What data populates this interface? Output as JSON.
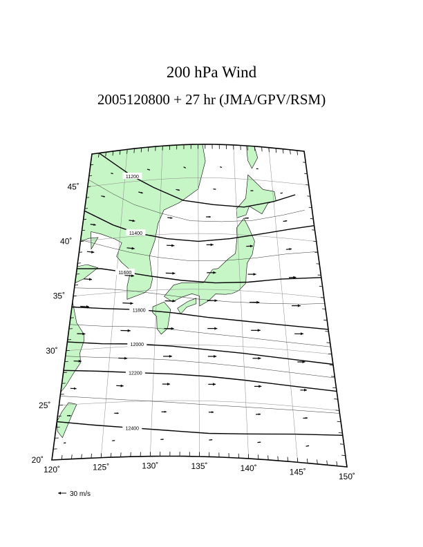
{
  "title": "200 hPa Wind",
  "subtitle": "2005120800 + 27 hr (JMA/GPV/RSM)",
  "map": {
    "lon_min": 120,
    "lon_max": 150,
    "lat_min": 20,
    "lat_max": 48,
    "lon_labels": [
      {
        "lon": 120,
        "text": "120˚"
      },
      {
        "lon": 125,
        "text": "125˚"
      },
      {
        "lon": 130,
        "text": "130˚"
      },
      {
        "lon": 135,
        "text": "135˚"
      },
      {
        "lon": 140,
        "text": "140˚"
      },
      {
        "lon": 145,
        "text": "145˚"
      },
      {
        "lon": 150,
        "text": "150˚"
      }
    ],
    "lat_labels": [
      {
        "lat": 20,
        "text": "20˚"
      },
      {
        "lat": 25,
        "text": "25˚"
      },
      {
        "lat": 30,
        "text": "30˚"
      },
      {
        "lat": 35,
        "text": "35˚"
      },
      {
        "lat": 40,
        "text": "40˚"
      },
      {
        "lat": 45,
        "text": "45˚"
      }
    ],
    "land_color": "#c6f5c6",
    "contours": [
      {
        "value": "11200",
        "label": "11200",
        "points": [
          [
            120,
            48.5
          ],
          [
            123,
            47
          ],
          [
            126,
            45.5
          ],
          [
            129,
            44.3
          ],
          [
            133,
            43
          ],
          [
            137,
            42.6
          ],
          [
            141,
            42.5
          ],
          [
            145,
            43.2
          ],
          [
            148,
            44
          ]
        ]
      },
      {
        "value": "11400",
        "label": "11400",
        "points": [
          [
            120,
            42.8
          ],
          [
            124,
            41.2
          ],
          [
            127,
            40.3
          ],
          [
            131,
            39.6
          ],
          [
            135,
            39.3
          ],
          [
            139,
            39.6
          ],
          [
            143,
            40.2
          ],
          [
            147,
            40.9
          ],
          [
            150,
            41.4
          ]
        ]
      },
      {
        "value": "11600",
        "label": "11600",
        "points": [
          [
            120,
            37.5
          ],
          [
            123,
            37.3
          ],
          [
            126,
            36.8
          ],
          [
            129,
            36.3
          ],
          [
            133,
            35.8
          ],
          [
            137,
            35.6
          ],
          [
            141,
            35.8
          ],
          [
            145,
            36.3
          ],
          [
            150,
            36.8
          ]
        ]
      },
      {
        "value": "11800",
        "label": "11800",
        "points": [
          [
            120,
            34
          ],
          [
            124,
            33.6
          ],
          [
            128,
            33.3
          ],
          [
            132,
            32.9
          ],
          [
            136,
            32.5
          ],
          [
            140,
            32.3
          ],
          [
            144,
            32.2
          ],
          [
            150,
            32.2
          ]
        ]
      },
      {
        "value": "12000",
        "label": "12000",
        "points": [
          [
            120,
            30.8
          ],
          [
            124,
            30.4
          ],
          [
            128,
            30.2
          ],
          [
            132,
            29.9
          ],
          [
            136,
            29.6
          ],
          [
            140,
            29.4
          ],
          [
            145,
            29.2
          ],
          [
            150,
            29.1
          ]
        ]
      },
      {
        "value": "12200",
        "label": "12200",
        "points": [
          [
            120,
            28.2
          ],
          [
            124,
            27.9
          ],
          [
            128,
            27.6
          ],
          [
            132,
            27.4
          ],
          [
            136,
            27.2
          ],
          [
            140,
            27
          ],
          [
            145,
            26.8
          ],
          [
            150,
            26.7
          ]
        ]
      },
      {
        "value": "12400",
        "label": "12400",
        "points": [
          [
            120,
            23.5
          ],
          [
            124,
            23
          ],
          [
            128,
            22.6
          ],
          [
            132,
            22.3
          ],
          [
            136,
            22.1
          ],
          [
            140,
            22.2
          ],
          [
            145,
            22.5
          ],
          [
            150,
            22.8
          ]
        ]
      }
    ],
    "wind_vectors": [
      {
        "lon": 123,
        "lat": 46,
        "u": 8,
        "v": -2
      },
      {
        "lon": 128,
        "lat": 46,
        "u": 10,
        "v": -3
      },
      {
        "lon": 133,
        "lat": 46,
        "u": 8,
        "v": -4
      },
      {
        "lon": 138,
        "lat": 46,
        "u": 7,
        "v": -2
      },
      {
        "lon": 143,
        "lat": 46,
        "u": 7,
        "v": 0
      },
      {
        "lon": 122,
        "lat": 44,
        "u": 14,
        "v": -3
      },
      {
        "lon": 127,
        "lat": 44,
        "u": 16,
        "v": -4
      },
      {
        "lon": 132,
        "lat": 44,
        "u": 14,
        "v": -3
      },
      {
        "lon": 137,
        "lat": 44,
        "u": 10,
        "v": -1
      },
      {
        "lon": 142,
        "lat": 44,
        "u": 10,
        "v": 0
      },
      {
        "lon": 146,
        "lat": 44,
        "u": 8,
        "v": 1
      },
      {
        "lon": 121,
        "lat": 41.5,
        "u": 20,
        "v": -3
      },
      {
        "lon": 126,
        "lat": 41.5,
        "u": 22,
        "v": -3
      },
      {
        "lon": 131,
        "lat": 41.5,
        "u": 18,
        "v": -2
      },
      {
        "lon": 136,
        "lat": 41.5,
        "u": 17,
        "v": 0
      },
      {
        "lon": 141,
        "lat": 41.5,
        "u": 15,
        "v": 1
      },
      {
        "lon": 146,
        "lat": 41.5,
        "u": 14,
        "v": 2
      },
      {
        "lon": 121,
        "lat": 39,
        "u": 26,
        "v": -3
      },
      {
        "lon": 126,
        "lat": 39,
        "u": 28,
        "v": -3
      },
      {
        "lon": 131,
        "lat": 39,
        "u": 28,
        "v": -1
      },
      {
        "lon": 136,
        "lat": 39,
        "u": 25,
        "v": 0
      },
      {
        "lon": 141,
        "lat": 39,
        "u": 24,
        "v": 1
      },
      {
        "lon": 146,
        "lat": 39,
        "u": 20,
        "v": 2
      },
      {
        "lon": 121,
        "lat": 36.5,
        "u": 30,
        "v": -2
      },
      {
        "lon": 126,
        "lat": 36.5,
        "u": 34,
        "v": -2
      },
      {
        "lon": 131,
        "lat": 36.5,
        "u": 34,
        "v": -1
      },
      {
        "lon": 136,
        "lat": 36.5,
        "u": 33,
        "v": 0
      },
      {
        "lon": 141,
        "lat": 36.5,
        "u": 30,
        "v": 0
      },
      {
        "lon": 146,
        "lat": 36.5,
        "u": 26,
        "v": 1
      },
      {
        "lon": 121,
        "lat": 34,
        "u": 32,
        "v": -2
      },
      {
        "lon": 126,
        "lat": 34,
        "u": 38,
        "v": -2
      },
      {
        "lon": 131,
        "lat": 34,
        "u": 38,
        "v": -1
      },
      {
        "lon": 136,
        "lat": 34,
        "u": 37,
        "v": 0
      },
      {
        "lon": 141,
        "lat": 34,
        "u": 36,
        "v": 0
      },
      {
        "lon": 146,
        "lat": 34,
        "u": 32,
        "v": 0
      },
      {
        "lon": 121,
        "lat": 31.5,
        "u": 30,
        "v": -1
      },
      {
        "lon": 126,
        "lat": 31.5,
        "u": 36,
        "v": -1
      },
      {
        "lon": 131,
        "lat": 31.5,
        "u": 36,
        "v": 0
      },
      {
        "lon": 136,
        "lat": 31.5,
        "u": 35,
        "v": 0
      },
      {
        "lon": 141,
        "lat": 31.5,
        "u": 34,
        "v": 0
      },
      {
        "lon": 146,
        "lat": 31.5,
        "u": 32,
        "v": 0
      },
      {
        "lon": 121,
        "lat": 29,
        "u": 28,
        "v": -1
      },
      {
        "lon": 126,
        "lat": 29,
        "u": 32,
        "v": -1
      },
      {
        "lon": 131,
        "lat": 29,
        "u": 32,
        "v": 0
      },
      {
        "lon": 136,
        "lat": 29,
        "u": 31,
        "v": 0
      },
      {
        "lon": 141,
        "lat": 29,
        "u": 30,
        "v": 0
      },
      {
        "lon": 146,
        "lat": 29,
        "u": 28,
        "v": 0
      },
      {
        "lon": 121,
        "lat": 26.5,
        "u": 22,
        "v": -1
      },
      {
        "lon": 126,
        "lat": 26.5,
        "u": 26,
        "v": -1
      },
      {
        "lon": 131,
        "lat": 26.5,
        "u": 28,
        "v": 0
      },
      {
        "lon": 136,
        "lat": 26.5,
        "u": 27,
        "v": 0
      },
      {
        "lon": 141,
        "lat": 26.5,
        "u": 26,
        "v": 0
      },
      {
        "lon": 146,
        "lat": 26.5,
        "u": 24,
        "v": 0
      },
      {
        "lon": 121,
        "lat": 24,
        "u": 14,
        "v": 0
      },
      {
        "lon": 126,
        "lat": 24,
        "u": 16,
        "v": 0
      },
      {
        "lon": 131,
        "lat": 24,
        "u": 18,
        "v": 0
      },
      {
        "lon": 136,
        "lat": 24,
        "u": 18,
        "v": 0
      },
      {
        "lon": 141,
        "lat": 24,
        "u": 17,
        "v": 1
      },
      {
        "lon": 146,
        "lat": 24,
        "u": 16,
        "v": 1
      },
      {
        "lon": 121,
        "lat": 21.5,
        "u": 8,
        "v": 1
      },
      {
        "lon": 126,
        "lat": 21.5,
        "u": 10,
        "v": 1
      },
      {
        "lon": 131,
        "lat": 21.5,
        "u": 11,
        "v": 1
      },
      {
        "lon": 136,
        "lat": 21.5,
        "u": 12,
        "v": 1
      },
      {
        "lon": 141,
        "lat": 21.5,
        "u": 12,
        "v": 1
      },
      {
        "lon": 146,
        "lat": 21.5,
        "u": 11,
        "v": 2
      }
    ],
    "land_areas": [
      {
        "name": "asia-mainland",
        "points": [
          [
            120,
            48.5
          ],
          [
            135.5,
            48.5
          ],
          [
            136,
            46.5
          ],
          [
            135,
            44
          ],
          [
            132.5,
            42.8
          ],
          [
            130.5,
            42.2
          ],
          [
            129.8,
            41
          ],
          [
            129.5,
            39.5
          ],
          [
            128.9,
            38.1
          ],
          [
            129.4,
            36
          ],
          [
            129.2,
            35.2
          ],
          [
            128.5,
            34.8
          ],
          [
            126.5,
            34.3
          ],
          [
            126.4,
            35.5
          ],
          [
            126.7,
            36.9
          ],
          [
            125.5,
            37.7
          ],
          [
            124.8,
            38.3
          ],
          [
            125.3,
            39.5
          ],
          [
            124.4,
            39.9
          ],
          [
            122.5,
            40.5
          ],
          [
            121.2,
            40.8
          ],
          [
            121.5,
            39.2
          ],
          [
            122.2,
            40.2
          ],
          [
            121,
            40.2
          ],
          [
            120,
            40
          ]
        ]
      },
      {
        "name": "shandong",
        "points": [
          [
            120,
            37.7
          ],
          [
            121.2,
            37.8
          ],
          [
            122.6,
            37.4
          ],
          [
            121,
            36.5
          ],
          [
            120,
            36.2
          ]
        ]
      },
      {
        "name": "china-coast",
        "points": [
          [
            120,
            34.5
          ],
          [
            120.8,
            32.5
          ],
          [
            121.8,
            31.4
          ],
          [
            121.9,
            30.8
          ],
          [
            121.6,
            29.7
          ],
          [
            121.8,
            28.8
          ],
          [
            121.1,
            27.8
          ],
          [
            120.5,
            26.8
          ],
          [
            120,
            26.2
          ]
        ]
      },
      {
        "name": "sakhalin",
        "points": [
          [
            141.8,
            48.5
          ],
          [
            142.8,
            48.5
          ],
          [
            143.3,
            47
          ],
          [
            142.4,
            46
          ],
          [
            141.9,
            46.7
          ]
        ]
      },
      {
        "name": "hokkaido",
        "points": [
          [
            140,
            41.5
          ],
          [
            141.2,
            41.8
          ],
          [
            141.7,
            42.6
          ],
          [
            143.3,
            42
          ],
          [
            144.2,
            43
          ],
          [
            145.3,
            43.3
          ],
          [
            145.2,
            44.1
          ],
          [
            143.7,
            44.2
          ],
          [
            141.8,
            45.4
          ],
          [
            141.3,
            43.3
          ],
          [
            140,
            42.3
          ]
        ]
      },
      {
        "name": "honshu",
        "points": [
          [
            130.9,
            34.4
          ],
          [
            132,
            35.4
          ],
          [
            133,
            35.6
          ],
          [
            135.6,
            35.6
          ],
          [
            136.7,
            36.8
          ],
          [
            137.4,
            36.9
          ],
          [
            138.7,
            37.8
          ],
          [
            139.6,
            38.3
          ],
          [
            139.9,
            39.8
          ],
          [
            139.9,
            40.6
          ],
          [
            140.9,
            41.5
          ],
          [
            141.5,
            40.6
          ],
          [
            142.1,
            39.5
          ],
          [
            141.7,
            38.3
          ],
          [
            141,
            37.5
          ],
          [
            140.8,
            36.5
          ],
          [
            140.7,
            35.7
          ],
          [
            139.8,
            35
          ],
          [
            139,
            34.7
          ],
          [
            138.2,
            34.6
          ],
          [
            137,
            34.6
          ],
          [
            136.2,
            34
          ],
          [
            135.1,
            33.5
          ],
          [
            135.1,
            34.4
          ],
          [
            134.2,
            34.6
          ],
          [
            133,
            34.3
          ],
          [
            131.9,
            33.9
          ]
        ]
      },
      {
        "name": "kyushu",
        "points": [
          [
            129.6,
            33.5
          ],
          [
            130.9,
            33.9
          ],
          [
            131.7,
            33.2
          ],
          [
            131.4,
            31.5
          ],
          [
            130.7,
            31
          ],
          [
            130.2,
            31.5
          ],
          [
            130.1,
            32.6
          ],
          [
            129.6,
            33
          ]
        ]
      },
      {
        "name": "shikoku",
        "points": [
          [
            132.5,
            33.3
          ],
          [
            133.7,
            33.9
          ],
          [
            134.7,
            34.2
          ],
          [
            134.7,
            33.7
          ],
          [
            133.6,
            33.4
          ],
          [
            132.9,
            32.8
          ]
        ]
      },
      {
        "name": "taiwan",
        "points": [
          [
            121,
            25.2
          ],
          [
            121.9,
            25
          ],
          [
            121.5,
            24
          ],
          [
            120.8,
            22
          ],
          [
            120.2,
            22.6
          ],
          [
            120,
            23.5
          ],
          [
            120.4,
            24.4
          ]
        ]
      }
    ],
    "scale_label": "30 m/s"
  }
}
